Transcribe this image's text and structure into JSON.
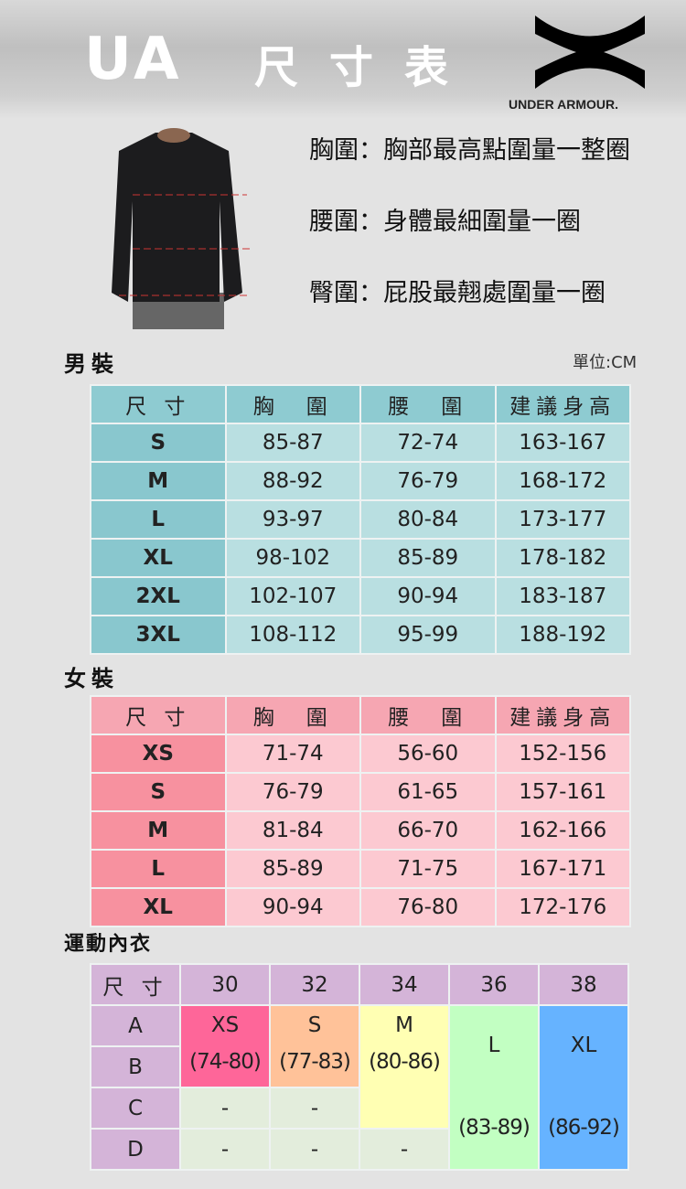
{
  "header": {
    "brand_short": "UA",
    "title": "尺寸表",
    "logo_text": "UNDER ARMOUR."
  },
  "measurements": [
    {
      "label": "胸圍",
      "desc": "胸部最高點圍量一整圈"
    },
    {
      "label": "腰圍",
      "desc": "身體最細圍量一圈"
    },
    {
      "label": "臀圍",
      "desc": "屁股最翹處圍量一圈"
    }
  ],
  "men": {
    "title": "男裝",
    "unit": "單位:CM",
    "headers": [
      "尺 寸",
      "胸　圍",
      "腰　圍",
      "建議身高"
    ],
    "rows": [
      [
        "S",
        "85-87",
        "72-74",
        "163-167"
      ],
      [
        "M",
        "88-92",
        "76-79",
        "168-172"
      ],
      [
        "L",
        "93-97",
        "80-84",
        "173-177"
      ],
      [
        "XL",
        "98-102",
        "85-89",
        "178-182"
      ],
      [
        "2XL",
        "102-107",
        "90-94",
        "183-187"
      ],
      [
        "3XL",
        "108-112",
        "95-99",
        "188-192"
      ]
    ]
  },
  "women": {
    "title": "女裝",
    "headers": [
      "尺 寸",
      "胸　圍",
      "腰　圍",
      "建議身高"
    ],
    "rows": [
      [
        "XS",
        "71-74",
        "56-60",
        "152-156"
      ],
      [
        "S",
        "76-79",
        "61-65",
        "157-161"
      ],
      [
        "M",
        "81-84",
        "66-70",
        "162-166"
      ],
      [
        "L",
        "85-89",
        "71-75",
        "167-171"
      ],
      [
        "XL",
        "90-94",
        "76-80",
        "172-176"
      ]
    ]
  },
  "bra": {
    "title": "運動內衣",
    "corner": "尺 寸",
    "bands": [
      "30",
      "32",
      "34",
      "36",
      "38"
    ],
    "cups": [
      "A",
      "B",
      "C",
      "D"
    ],
    "sizes": [
      {
        "size": "XS",
        "range": "(74-80)",
        "color": "#fe6699"
      },
      {
        "size": "S",
        "range": "(77-83)",
        "color": "#ffc299"
      },
      {
        "size": "M",
        "range": "(80-86)",
        "color": "#ffffb3"
      },
      {
        "size": "L",
        "range": "(83-89)",
        "color": "#c2ffc2"
      },
      {
        "size": "XL",
        "range": "(86-92)",
        "color": "#66b3ff"
      }
    ],
    "empty": "-"
  }
}
